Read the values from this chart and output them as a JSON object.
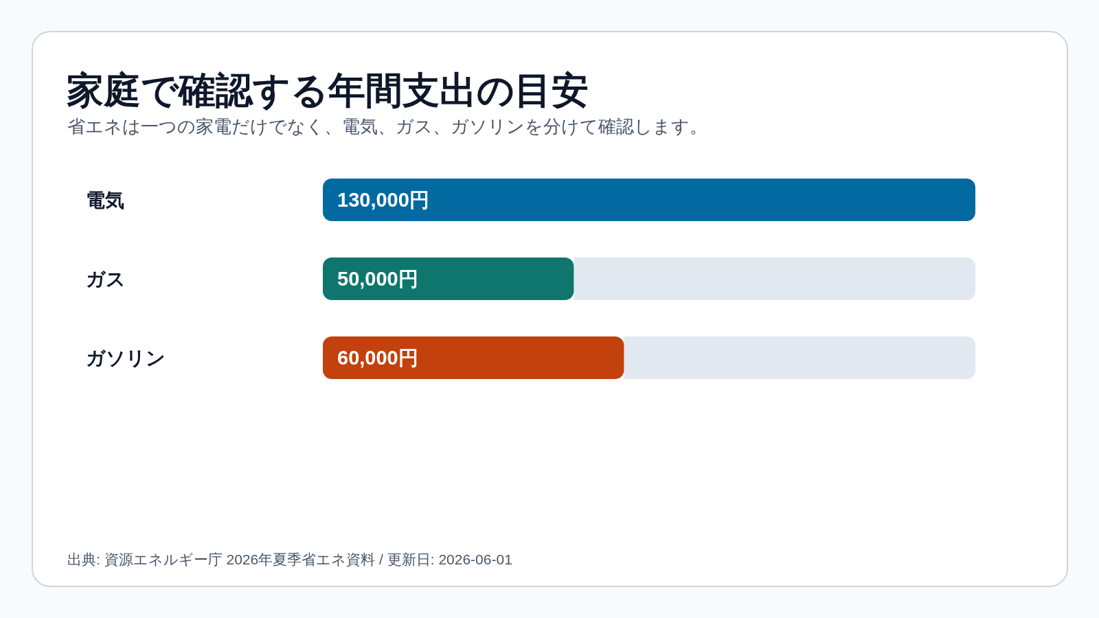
{
  "chart_data": {
    "type": "bar",
    "orientation": "horizontal",
    "title": "家庭で確認する年間支出の目安",
    "subtitle": "省エネは一つの家電だけでなく、電気、ガス、ガソリンを分けて確認します。",
    "categories": [
      "電気",
      "ガス",
      "ガソリン"
    ],
    "values": [
      130000,
      50000,
      60000
    ],
    "colors": [
      "#0369a1",
      "#0f766e",
      "#c2410c"
    ],
    "value_labels": [
      "130,000円",
      "50,000円",
      "60,000円"
    ],
    "xlim": [
      0,
      130000
    ],
    "tick_labels": "y",
    "annotations": [
      "出典: 資源エネルギー庁 2026年夏季省エネ資料 / 更新日: 2026-06-01"
    ]
  }
}
